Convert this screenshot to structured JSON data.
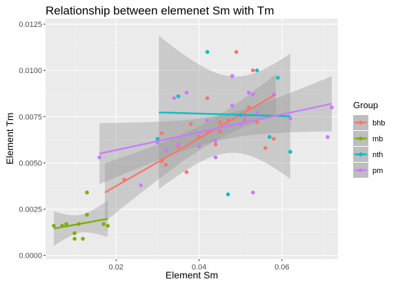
{
  "chart_data": {
    "type": "scatter",
    "title": "Relationship between elemenet Sm with Tm",
    "xlabel": "Element Sm",
    "ylabel": "Element Tm",
    "xlim": [
      0.003,
      0.0735
    ],
    "ylim": [
      -0.0002,
      0.0128
    ],
    "x_ticks": [
      0.02,
      0.04,
      0.06
    ],
    "x_tick_labels": [
      "0.02",
      "0.04",
      "0.06"
    ],
    "y_ticks": [
      0,
      0.0025,
      0.005,
      0.0075,
      0.01,
      0.0125
    ],
    "y_tick_labels": [
      "0.0000",
      "0.0025",
      "0.0050",
      "0.0075",
      "0.0100",
      "0.0125"
    ],
    "grid": true,
    "smooth": "linear fit with confidence band",
    "legend": {
      "title": "Group",
      "position": "right"
    },
    "series": [
      {
        "name": "bhb",
        "color": "#F8766D",
        "points": [
          [
            0.017,
            0.0017
          ],
          [
            0.022,
            0.0041
          ],
          [
            0.031,
            0.0066
          ],
          [
            0.031,
            0.0051
          ],
          [
            0.032,
            0.0049
          ],
          [
            0.035,
            0.0059
          ],
          [
            0.037,
            0.0045
          ],
          [
            0.038,
            0.0071
          ],
          [
            0.04,
            0.0064
          ],
          [
            0.042,
            0.0085
          ],
          [
            0.042,
            0.0067
          ],
          [
            0.044,
            0.006
          ],
          [
            0.045,
            0.0067
          ],
          [
            0.045,
            0.0072
          ],
          [
            0.047,
            0.0073
          ],
          [
            0.049,
            0.011
          ],
          [
            0.051,
            0.0073
          ],
          [
            0.052,
            0.008
          ],
          [
            0.053,
            0.01
          ],
          [
            0.054,
            0.0072
          ],
          [
            0.056,
            0.0058
          ],
          [
            0.058,
            0.0063
          ],
          [
            0.062,
            0.0074
          ]
        ],
        "fit": {
          "x": [
            0.0173,
            0.0585
          ],
          "y": [
            0.0034,
            0.0087
          ]
        }
      },
      {
        "name": "mb",
        "color": "#7CAE00",
        "points": [
          [
            0.005,
            0.0016
          ],
          [
            0.007,
            0.0016
          ],
          [
            0.008,
            0.0017
          ],
          [
            0.01,
            0.0012
          ],
          [
            0.01,
            0.0009
          ],
          [
            0.011,
            0.0017
          ],
          [
            0.012,
            0.0009
          ],
          [
            0.013,
            0.0034
          ],
          [
            0.013,
            0.0022
          ],
          [
            0.017,
            0.0017
          ],
          [
            0.018,
            0.0016
          ]
        ],
        "fit": {
          "x": [
            0.005,
            0.018
          ],
          "y": [
            0.00145,
            0.00198
          ]
        }
      },
      {
        "name": "nth",
        "color": "#00BFC4",
        "points": [
          [
            0.03,
            0.0063
          ],
          [
            0.035,
            0.0086
          ],
          [
            0.042,
            0.011
          ],
          [
            0.047,
            0.0033
          ],
          [
            0.05,
            0.0076
          ],
          [
            0.054,
            0.01
          ],
          [
            0.057,
            0.0064
          ],
          [
            0.059,
            0.0096
          ],
          [
            0.062,
            0.0056
          ]
        ],
        "fit": {
          "x": [
            0.0303,
            0.062
          ],
          "y": [
            0.00773,
            0.00752
          ]
        }
      },
      {
        "name": "pm",
        "color": "#C77CFF",
        "points": [
          [
            0.016,
            0.0053
          ],
          [
            0.026,
            0.0038
          ],
          [
            0.03,
            0.0061
          ],
          [
            0.032,
            0.0057
          ],
          [
            0.034,
            0.0085
          ],
          [
            0.035,
            0.006
          ],
          [
            0.037,
            0.0088
          ],
          [
            0.04,
            0.0059
          ],
          [
            0.042,
            0.0073
          ],
          [
            0.044,
            0.0053
          ],
          [
            0.044,
            0.0062
          ],
          [
            0.048,
            0.0097
          ],
          [
            0.048,
            0.0081
          ],
          [
            0.05,
            0.0071
          ],
          [
            0.051,
            0.0075
          ],
          [
            0.052,
            0.0088
          ],
          [
            0.053,
            0.0034
          ],
          [
            0.053,
            0.0087
          ],
          [
            0.054,
            0.0077
          ],
          [
            0.058,
            0.0087
          ],
          [
            0.062,
            0.0074
          ],
          [
            0.071,
            0.0064
          ],
          [
            0.072,
            0.008
          ]
        ],
        "fit": {
          "x": [
            0.016,
            0.072
          ],
          "y": [
            0.0055,
            0.0082
          ]
        }
      }
    ]
  }
}
